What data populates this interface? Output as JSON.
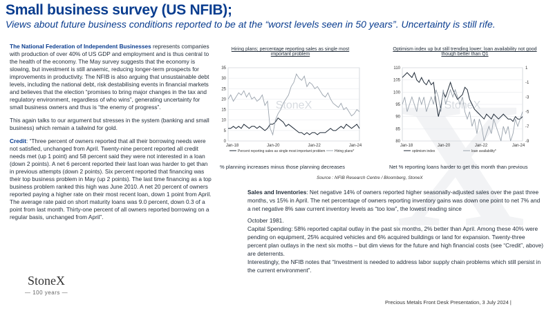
{
  "title": "Small business survey (US NFIB);",
  "subtitle": "Views about future business conditions reported to be at the “worst levels seen in 50 years”.  Uncertainty is still rife.",
  "left": {
    "p1_bold": "The National Federation of Independent Businesses",
    "p1_text": " represents companies with production of over 40% of US GDP and employment and is thus central to the health of the economy.  The May survey suggests that the economy is slowing, but investment is still anaemic, reducing longer-term prospects for improvements in productivity.  The NFIB is also arguing that unsustainable debt levels, including the national debt, risk destabilising events in financial markets and believes that the election “promises to bring major changes in the tax and regulatory environment, regardless of who wins”, generating uncertainty for small business owners and thus is “the enemy of progress”.",
    "p2": "This again talks to our argument but stresses in the system (banking and small business) which remain a tailwind for gold.",
    "p3_bold": "Credit",
    "p3_text": ": “Three percent of owners reported that all their borrowing needs were not satisfied, unchanged from April. Twenty-nine percent reported all credit needs met (up 1 point) and 58 percent said they were not interested in a loan (down 2 points). A net 6 percent reported their last loan was harder to get than in previous attempts (down 2 points). Six percent reported that financing was their top business problem in May (up 2 points). The last time financing as a top business problem ranked this high was June 2010. A net 20 percent of owners reported paying a higher rate on their most recent loan, down 1 point from April. The average rate paid on short maturity loans was 9.0 percent, down 0.3 of a point from last month. Thirty-one percent of all owners reported borrowing on a regular basis, unchanged from April”."
  },
  "logo": {
    "name": "StoneX",
    "years": "100 years"
  },
  "watermark": "X",
  "chart1": {
    "title": "Hiring plans; percentage reporting sales as single most important problem",
    "caption": "% planning increases minus those planning decreases",
    "watermark": "StoneX",
    "legend": [
      "Percent reporting sales as single most important problem",
      "Hiring plans*"
    ]
  },
  "chart2": {
    "title": "Optimism index up but still trending lower; loan availability not good though better than Q1",
    "caption": "Net % reporting loans harder to get this month than previous",
    "watermark": "StoneX",
    "legend": [
      "optimism index",
      "loan availability*"
    ]
  },
  "source": "Source : NFIB Research Centre / Bloomberg,  StoneX",
  "right": {
    "p1_bold": "Sales and Inventories",
    "p1_text": ": Net negative 14% of owners reported higher seasonally-adjusted sales over the past three months, vs 15% in April.  The net percentage of owners reporting inventory gains was down one point to net 7% and a net negative 8% saw current inventory levels as “too low”, the lowest reading since",
    "p1_tail": "October 1981.",
    "p2": "Capital Spending: 58% reported capital outlay in the past six months, 2% better than April.  Among these 40% were pending on equipment, 25% acquired vehicles and 6% acquired buildings  or land for expansion. Twenty-three percent plan outlays in the next six moths – but dim views for the future and high financial costs (see “Credit”, above) are deterrents.",
    "p3": "Interestingly, the NFIB notes that “Investment is needed to address labor supply chain problems which still persist in the current environment”."
  },
  "footer": "Precious Metals Front Desk Presentation, 3 July 2024 |",
  "chart_data": [
    {
      "type": "line",
      "title": "Hiring plans; percentage reporting sales as single most important problem",
      "x_ticks": [
        "Jan-18",
        "Jan-20",
        "Jan-22",
        "Jan-24"
      ],
      "ylim": [
        0,
        35
      ],
      "y_ticks": [
        0,
        5,
        10,
        15,
        20,
        25,
        30,
        35
      ],
      "series": [
        {
          "name": "Percent reporting sales as single most important problem",
          "color": "#1f2a37",
          "values": [
            6,
            6,
            7,
            6,
            7,
            6,
            8,
            7,
            6,
            7,
            7,
            6,
            7,
            6,
            5,
            6,
            8,
            8,
            9,
            11,
            10,
            9,
            7,
            8,
            7,
            6,
            5,
            4,
            4,
            3,
            4,
            3,
            4,
            4,
            3,
            4,
            4,
            4,
            5,
            6,
            5,
            5,
            6,
            7,
            6,
            8,
            7,
            6,
            7,
            8,
            6
          ]
        },
        {
          "name": "Hiring plans*",
          "color": "#9aa3ad",
          "values": [
            20,
            22,
            19,
            21,
            23,
            22,
            24,
            21,
            23,
            20,
            21,
            19,
            20,
            22,
            17,
            19,
            6,
            3,
            10,
            13,
            15,
            18,
            20,
            22,
            26,
            28,
            32,
            30,
            29,
            31,
            26,
            28,
            27,
            25,
            26,
            24,
            22,
            21,
            23,
            20,
            18,
            17,
            16,
            18,
            15,
            16,
            14,
            12,
            13,
            15,
            14
          ]
        }
      ]
    },
    {
      "type": "line",
      "title": "Optimism index up but still trending lower; loan availability not good though better than Q1",
      "x_ticks": [
        "Jan-18",
        "Jan-20",
        "Jan-22",
        "Jan-24"
      ],
      "ylim": [
        80,
        110
      ],
      "y_ticks": [
        80,
        85,
        90,
        95,
        100,
        105,
        110
      ],
      "y2lim": [
        -9,
        1
      ],
      "y2_ticks": [
        1,
        -1,
        -3,
        -5,
        -7,
        -9
      ],
      "series": [
        {
          "name": "optimism index",
          "color": "#1f2a37",
          "values": [
            106,
            107,
            108,
            107,
            106,
            108,
            105,
            104,
            106,
            104,
            103,
            105,
            103,
            104,
            96,
            90,
            94,
            100,
            98,
            101,
            104,
            101,
            99,
            97,
            98,
            99,
            102,
            101,
            97,
            95,
            93,
            92,
            91,
            90,
            89,
            91,
            90,
            89,
            91,
            90,
            89,
            90,
            91,
            90,
            89,
            89,
            88,
            90,
            89,
            89,
            90
          ]
        },
        {
          "name": "loan availability*",
          "color": "#9aa3ad",
          "values": [
            -4,
            -3,
            -5,
            -4,
            -3,
            -4,
            -5,
            -3,
            -4,
            -3,
            -5,
            -4,
            -3,
            -4,
            -2,
            -3,
            -5,
            -2,
            -4,
            -3,
            -2,
            -3,
            -2,
            -3,
            -4,
            -3,
            -5,
            -6,
            -5,
            -7,
            -6,
            -8,
            -6,
            -7,
            -9,
            -8,
            -7,
            -8,
            -6,
            -7,
            -8,
            -9,
            -7,
            -8,
            -7,
            -9,
            -8,
            -6,
            -7,
            -6,
            -5
          ]
        }
      ]
    }
  ]
}
